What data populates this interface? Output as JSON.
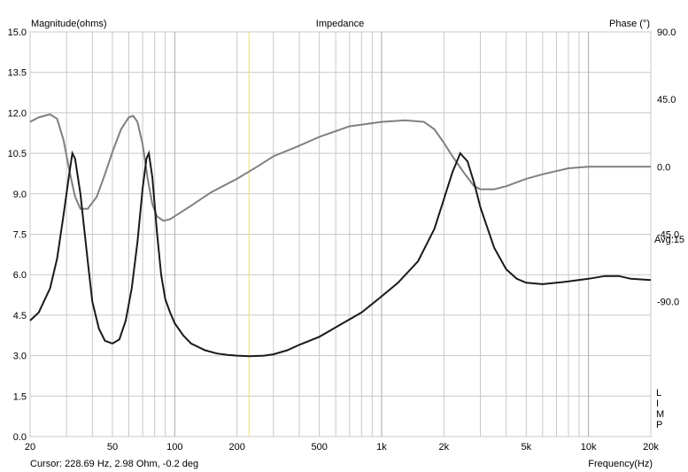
{
  "chart_data": {
    "type": "line",
    "title": "Impedance",
    "left_axis_label": "Magnitude(ohms)",
    "right_axis_label": "Phase (°)",
    "xlabel": "Frequency(Hz)",
    "x_scale": "log",
    "xlim": [
      20,
      20000
    ],
    "ylim": [
      0,
      15
    ],
    "y2lim": [
      -180,
      90
    ],
    "left_ticks": [
      "0.0",
      "1.5",
      "3.0",
      "4.5",
      "6.0",
      "7.5",
      "9.0",
      "10.5",
      "12.0",
      "13.5",
      "15.0"
    ],
    "right_ticks": [
      "90.0",
      "45.0",
      "0.0",
      "-45.0",
      "-90.0"
    ],
    "x_ticks": [
      {
        "value": 20,
        "label": "20"
      },
      {
        "value": 50,
        "label": "50"
      },
      {
        "value": 100,
        "label": "100"
      },
      {
        "value": 200,
        "label": "200"
      },
      {
        "value": 500,
        "label": "500"
      },
      {
        "value": 1000,
        "label": "1k"
      },
      {
        "value": 2000,
        "label": "2k"
      },
      {
        "value": 5000,
        "label": "5k"
      },
      {
        "value": 10000,
        "label": "10k"
      },
      {
        "value": 20000,
        "label": "20k"
      }
    ],
    "avg_label": "Avg:15",
    "side_letters": [
      "L",
      "I",
      "M",
      "P"
    ],
    "cursor": {
      "x": 228.69,
      "label": "Cursor: 228.69 Hz, 2.98 Ohm, -0.2 deg"
    },
    "series": [
      {
        "name": "Magnitude",
        "axis": "left",
        "color": "#1a1a1a",
        "points": [
          [
            20,
            4.3
          ],
          [
            22,
            4.6
          ],
          [
            25,
            5.5
          ],
          [
            27,
            6.6
          ],
          [
            29,
            8.2
          ],
          [
            31,
            9.8
          ],
          [
            32,
            10.5
          ],
          [
            33,
            10.3
          ],
          [
            35,
            9.0
          ],
          [
            38,
            6.5
          ],
          [
            40,
            5.0
          ],
          [
            43,
            4.0
          ],
          [
            46,
            3.55
          ],
          [
            50,
            3.45
          ],
          [
            54,
            3.6
          ],
          [
            58,
            4.3
          ],
          [
            62,
            5.5
          ],
          [
            66,
            7.2
          ],
          [
            70,
            9.2
          ],
          [
            73,
            10.3
          ],
          [
            75,
            10.5
          ],
          [
            78,
            9.6
          ],
          [
            82,
            7.6
          ],
          [
            86,
            6.0
          ],
          [
            90,
            5.1
          ],
          [
            95,
            4.6
          ],
          [
            100,
            4.2
          ],
          [
            110,
            3.75
          ],
          [
            120,
            3.45
          ],
          [
            140,
            3.2
          ],
          [
            160,
            3.08
          ],
          [
            180,
            3.03
          ],
          [
            200,
            3.0
          ],
          [
            230,
            2.98
          ],
          [
            270,
            3.0
          ],
          [
            300,
            3.05
          ],
          [
            350,
            3.2
          ],
          [
            400,
            3.4
          ],
          [
            500,
            3.7
          ],
          [
            600,
            4.05
          ],
          [
            800,
            4.6
          ],
          [
            1000,
            5.2
          ],
          [
            1200,
            5.7
          ],
          [
            1500,
            6.5
          ],
          [
            1800,
            7.7
          ],
          [
            2000,
            8.8
          ],
          [
            2200,
            9.8
          ],
          [
            2400,
            10.5
          ],
          [
            2600,
            10.2
          ],
          [
            2800,
            9.4
          ],
          [
            3000,
            8.5
          ],
          [
            3500,
            7.0
          ],
          [
            4000,
            6.2
          ],
          [
            4500,
            5.85
          ],
          [
            5000,
            5.7
          ],
          [
            6000,
            5.65
          ],
          [
            7000,
            5.7
          ],
          [
            8000,
            5.75
          ],
          [
            10000,
            5.85
          ],
          [
            12000,
            5.95
          ],
          [
            14000,
            5.95
          ],
          [
            16000,
            5.85
          ],
          [
            20000,
            5.8
          ]
        ]
      },
      {
        "name": "Phase",
        "axis": "right",
        "color": "#808080",
        "points": [
          [
            20,
            30
          ],
          [
            22,
            33
          ],
          [
            25,
            35
          ],
          [
            27,
            32
          ],
          [
            29,
            18
          ],
          [
            31,
            -3
          ],
          [
            33,
            -20
          ],
          [
            35,
            -28
          ],
          [
            38,
            -28
          ],
          [
            42,
            -20
          ],
          [
            46,
            -5
          ],
          [
            50,
            10
          ],
          [
            55,
            25
          ],
          [
            60,
            33
          ],
          [
            63,
            34
          ],
          [
            66,
            30
          ],
          [
            70,
            15
          ],
          [
            74,
            -8
          ],
          [
            78,
            -25
          ],
          [
            82,
            -33
          ],
          [
            88,
            -36
          ],
          [
            95,
            -35
          ],
          [
            100,
            -33
          ],
          [
            120,
            -26
          ],
          [
            150,
            -17
          ],
          [
            200,
            -8
          ],
          [
            250,
            0
          ],
          [
            300,
            7
          ],
          [
            400,
            14
          ],
          [
            500,
            20
          ],
          [
            700,
            27
          ],
          [
            1000,
            30
          ],
          [
            1300,
            31
          ],
          [
            1600,
            30
          ],
          [
            1800,
            25
          ],
          [
            2000,
            16
          ],
          [
            2200,
            7
          ],
          [
            2500,
            -4
          ],
          [
            2800,
            -13
          ],
          [
            3000,
            -15
          ],
          [
            3500,
            -15
          ],
          [
            4000,
            -13
          ],
          [
            5000,
            -8
          ],
          [
            6000,
            -5
          ],
          [
            8000,
            -1
          ],
          [
            10000,
            0
          ],
          [
            15000,
            0
          ],
          [
            20000,
            0
          ]
        ]
      }
    ],
    "grid": true
  }
}
